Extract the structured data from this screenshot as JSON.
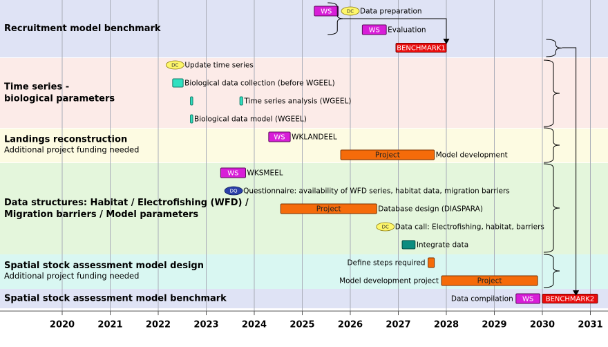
{
  "chart_data": {
    "type": "gantt",
    "x_ticks": [
      2020,
      2021,
      2022,
      2023,
      2024,
      2025,
      2026,
      2027,
      2028,
      2029,
      2030,
      2031
    ],
    "xlim": [
      2019.3,
      2031.4
    ],
    "grid": "vertical",
    "legend_markers": [
      "WS",
      "DC",
      "DQ",
      "Project"
    ],
    "sections": [
      {
        "title": [
          "Recruitment model benchmark"
        ],
        "subtitle": "",
        "color": "#dfe3f5",
        "rows": 3
      },
      {
        "title": [
          "Time series -",
          "biological parameters"
        ],
        "subtitle": "",
        "color": "#fcebe8",
        "rows": 4
      },
      {
        "title": [
          "Landings reconstruction"
        ],
        "subtitle": "Additional project funding needed",
        "color": "#fdfbe2",
        "rows": 2
      },
      {
        "title": [
          "Data structures: Habitat / Electrofishing (WFD) /",
          "Migration barriers / Model parameters"
        ],
        "subtitle": "",
        "color": "#e4f6dc",
        "rows": 5
      },
      {
        "title": [
          "Spatial stock assessment model design"
        ],
        "subtitle": "Additional project funding needed",
        "color": "#d9f7f2",
        "rows": 2
      },
      {
        "title": [
          "Spatial stock assessment model benchmark"
        ],
        "subtitle": "",
        "color": "#dfe3f5",
        "rows": 1
      }
    ],
    "tasks": [
      {
        "section": 0,
        "row": 0,
        "type": "ws",
        "start": 2025.25,
        "end": 2025.75,
        "label": "WS",
        "desc": ""
      },
      {
        "section": 0,
        "row": 0,
        "type": "dc",
        "start": 2026.0,
        "label": "DC",
        "desc": "Data preparation"
      },
      {
        "section": 0,
        "row": 1,
        "type": "ws",
        "start": 2026.25,
        "end": 2026.75,
        "label": "WS",
        "desc": "Evaluation"
      },
      {
        "section": 0,
        "row": 2,
        "type": "benchmark",
        "start": 2026.95,
        "end": 2028.0,
        "label": "BENCHMARK1",
        "desc": ""
      },
      {
        "section": 1,
        "row": 0,
        "type": "dc",
        "start": 2022.35,
        "label": "DC",
        "desc": "Update time series"
      },
      {
        "section": 1,
        "row": 1,
        "type": "teal",
        "start": 2022.3,
        "end": 2022.52,
        "label": "",
        "desc": "Biological data collection (before WGEEL)"
      },
      {
        "section": 1,
        "row": 2,
        "type": "teal",
        "start": 2022.67,
        "end": 2022.72,
        "label": "",
        "desc": ""
      },
      {
        "section": 1,
        "row": 2,
        "type": "teal",
        "start": 2023.7,
        "end": 2023.76,
        "label": "",
        "desc": "Time series analysis (WGEEL)"
      },
      {
        "section": 1,
        "row": 3,
        "type": "teal",
        "start": 2022.67,
        "end": 2022.72,
        "label": "",
        "desc": "Biological data model (WGEEL)"
      },
      {
        "section": 2,
        "row": 0,
        "type": "ws",
        "start": 2024.3,
        "end": 2024.75,
        "label": "WS",
        "desc": "WKLANDEEL"
      },
      {
        "section": 2,
        "row": 1,
        "type": "project",
        "start": 2025.8,
        "end": 2027.75,
        "label": "Project",
        "desc": "Model development"
      },
      {
        "section": 3,
        "row": 0,
        "type": "ws",
        "start": 2023.3,
        "end": 2023.82,
        "label": "WS",
        "desc": "WKSMEEL"
      },
      {
        "section": 3,
        "row": 1,
        "type": "dq",
        "start": 2023.57,
        "label": "DQ",
        "desc": "Questionnaire: availability of WFD series, habitat data, migration barriers"
      },
      {
        "section": 3,
        "row": 2,
        "type": "project",
        "start": 2024.55,
        "end": 2026.55,
        "label": "Project",
        "desc": "Database design (DIASPARA)"
      },
      {
        "section": 3,
        "row": 3,
        "type": "dc",
        "start": 2026.73,
        "label": "DC",
        "desc": "Data call: Electrofishing, habitat, barriers"
      },
      {
        "section": 3,
        "row": 4,
        "type": "tealdark",
        "start": 2027.08,
        "end": 2027.35,
        "label": "",
        "desc": "Integrate data"
      },
      {
        "section": 4,
        "row": 0,
        "type": "project",
        "start": 2027.62,
        "end": 2027.75,
        "label": "",
        "desc": "Define steps required",
        "desc_side": "left"
      },
      {
        "section": 4,
        "row": 1,
        "type": "project",
        "start": 2027.9,
        "end": 2029.9,
        "label": "Project",
        "desc": "Model development project",
        "desc_side": "left"
      },
      {
        "section": 5,
        "row": 0,
        "type": "ws",
        "start": 2029.45,
        "end": 2029.95,
        "label": "WS",
        "desc": "Data compilation",
        "desc_side": "left"
      },
      {
        "section": 5,
        "row": 0,
        "type": "benchmark",
        "start": 2030.0,
        "end": 2031.15,
        "label": "BENCHMARK2",
        "desc": ""
      }
    ],
    "brackets": [
      {
        "x": 2025.5,
        "y1": 4,
        "y2": 50
      },
      {
        "x": 2030.05,
        "y1": 57,
        "y2": 82
      },
      {
        "x": 2030.0,
        "y1": 87,
        "y2": 183
      },
      {
        "x": 2030.0,
        "y1": 185,
        "y2": 235
      },
      {
        "x": 2030.0,
        "y1": 237,
        "y2": 365
      },
      {
        "x": 2030.0,
        "y1": 368,
        "y2": 416
      }
    ]
  }
}
